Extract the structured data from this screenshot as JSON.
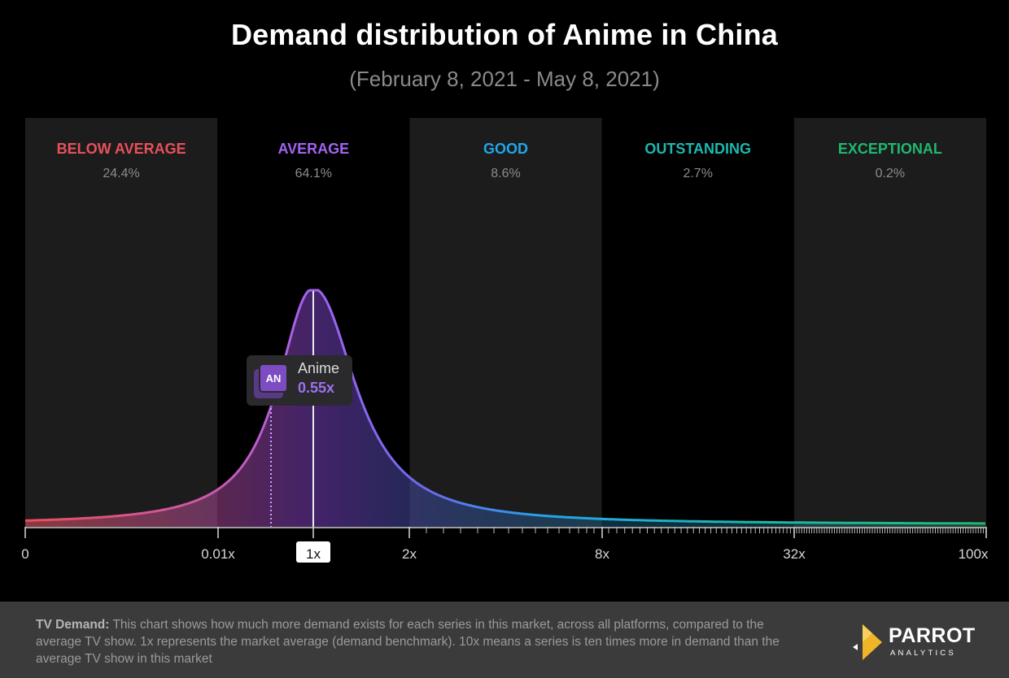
{
  "chart_data": {
    "type": "area",
    "title": "Demand distribution of Anime in China",
    "subtitle": "(February 8, 2021 - May 8, 2021)",
    "x_ticks": [
      "0",
      "0.01x",
      "1x",
      "2x",
      "8x",
      "32x",
      "100x"
    ],
    "bands": [
      {
        "label": "BELOW AVERAGE",
        "value": "24.4%",
        "color": "#e8505b"
      },
      {
        "label": "AVERAGE",
        "value": "64.1%",
        "color": "#a264f0"
      },
      {
        "label": "GOOD",
        "value": "8.6%",
        "color": "#21a6e8"
      },
      {
        "label": "OUTSTANDING",
        "value": "2.7%",
        "color": "#1cb8b0"
      },
      {
        "label": "EXCEPTIONAL",
        "value": "0.2%",
        "color": "#1fb870"
      }
    ],
    "highlight": {
      "name": "Anime",
      "abbr": "AN",
      "value": "0.55x",
      "demand_multiple": 0.55
    },
    "benchmark": {
      "label": "1x",
      "demand_multiple": 1
    }
  },
  "footer": {
    "label": "TV Demand:",
    "text": "This chart shows how much more demand exists for each series in this market, across all platforms, compared to the average TV show. 1x represents the market average (demand benchmark). 10x means a series is ten times more in demand than the average TV show in this market"
  },
  "logo": {
    "name": "PARROT",
    "sub": "ANALYTICS"
  }
}
